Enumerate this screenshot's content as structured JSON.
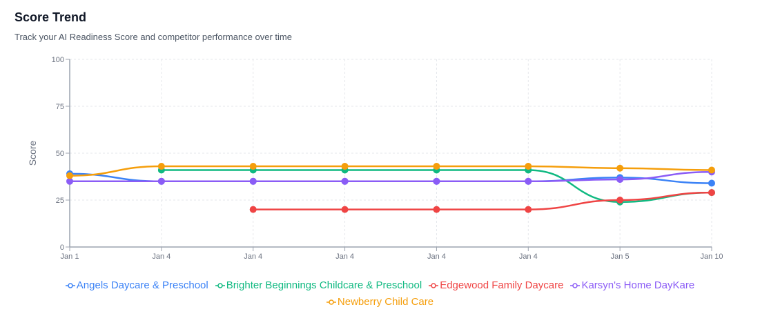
{
  "header": {
    "title": "Score Trend",
    "subtitle": "Track your AI Readiness Score and competitor performance over time"
  },
  "chart_data": {
    "type": "line",
    "title": "",
    "xlabel": "",
    "ylabel": "Score",
    "ylim": [
      0,
      100
    ],
    "yticks": [
      0,
      25,
      50,
      75,
      100
    ],
    "grid": true,
    "legend_placement": "bottom",
    "categories": [
      "Jan 1",
      "Jan 4",
      "Jan 4",
      "Jan 4",
      "Jan 4",
      "Jan 4",
      "Jan 5",
      "Jan 10"
    ],
    "series": [
      {
        "name": "Angels Daycare & Preschool",
        "color": "#3b82f6",
        "values": [
          39,
          35,
          35,
          35,
          35,
          35,
          37,
          34
        ]
      },
      {
        "name": "Brighter Beginnings Childcare & Preschool",
        "color": "#10b981",
        "values": [
          null,
          41,
          41,
          41,
          41,
          41,
          24,
          29
        ]
      },
      {
        "name": "Edgewood Family Daycare",
        "color": "#ef4444",
        "values": [
          null,
          null,
          20,
          20,
          20,
          20,
          25,
          29
        ]
      },
      {
        "name": "Karsyn's Home DayKare",
        "color": "#8b5cf6",
        "values": [
          35,
          35,
          35,
          35,
          35,
          35,
          36,
          40
        ]
      },
      {
        "name": "Newberry Child Care",
        "color": "#f59e0b",
        "values": [
          38,
          43,
          43,
          43,
          43,
          43,
          42,
          41
        ]
      }
    ]
  }
}
